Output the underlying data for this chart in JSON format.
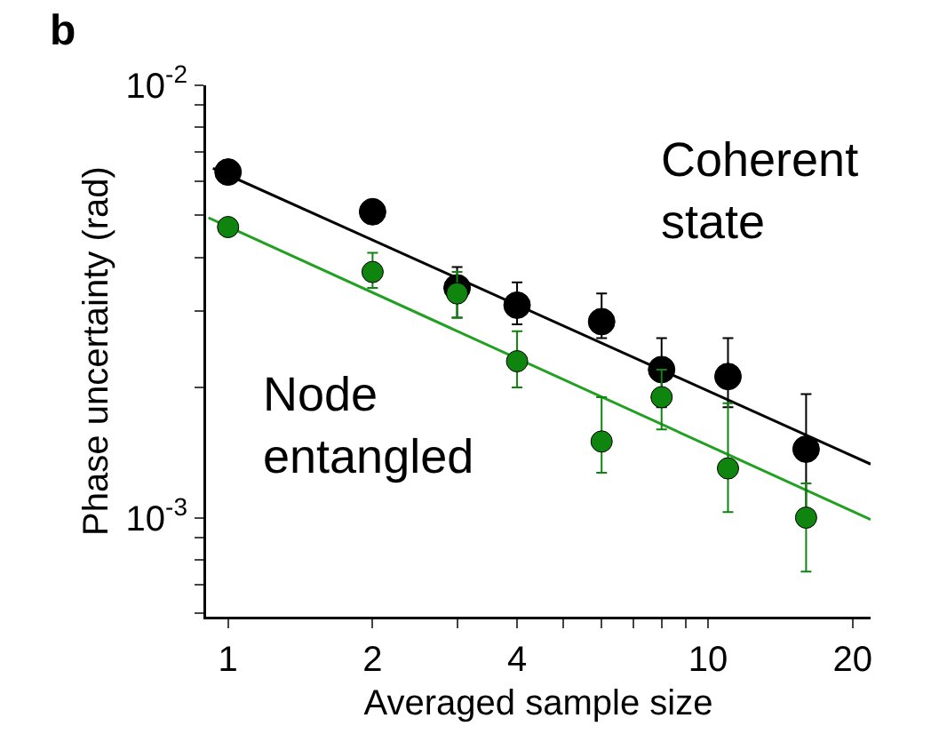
{
  "chart_data": {
    "type": "scatter",
    "xlabel": "Averaged sample size",
    "ylabel": "Phase uncertainty (rad)",
    "annotations": [
      "b"
    ],
    "log": "xy",
    "grid": false,
    "legend": false,
    "marker": "circle",
    "xlim": [
      0.9,
      21.8
    ],
    "ylim": [
      0.00059,
      0.01
    ],
    "xticks": [
      1,
      2,
      {
        "value": 3,
        "label": null
      },
      4,
      {
        "value": 5,
        "label": null
      },
      {
        "value": 6,
        "label": null
      },
      {
        "value": 7,
        "label": null
      },
      {
        "value": 8,
        "label": null
      },
      {
        "value": 9,
        "label": null
      },
      10,
      20
    ],
    "yticks": [
      {
        "value": 0.0006,
        "label": null
      },
      {
        "value": 0.0007,
        "label": null
      },
      {
        "value": 0.0008,
        "label": null
      },
      {
        "value": 0.0009,
        "label": null
      },
      {
        "value": 0.001,
        "label": "10$^{-3}$"
      },
      {
        "value": 0.002,
        "label": null
      },
      {
        "value": 0.003,
        "label": null
      },
      {
        "value": 0.004,
        "label": null
      },
      {
        "value": 0.005,
        "label": null
      },
      {
        "value": 0.006,
        "label": null
      },
      {
        "value": 0.007,
        "label": null
      },
      {
        "value": 0.008,
        "label": null
      },
      {
        "value": 0.009,
        "label": null
      },
      {
        "value": 0.01,
        "label": "10$^{-2}$"
      }
    ],
    "series": [
      {
        "type": "line",
        "marker": "none",
        "color": "#000000",
        "x": [
          0.93,
          21.8
        ],
        "values": [
          0.00643,
          0.00133
        ]
      },
      {
        "type": "line",
        "marker": "none",
        "color": "#22a022",
        "x": [
          0.91,
          21.8
        ],
        "values": [
          0.00494,
          0.00099
        ]
      },
      {
        "name": "Coherent state",
        "color": "#000000",
        "x": [
          1,
          2,
          3,
          4,
          6,
          8,
          11,
          16
        ],
        "values": [
          0.0063,
          0.0051,
          0.0034,
          0.0031,
          0.00284,
          0.0022,
          0.00212,
          0.00144
        ],
        "errors": [
          null,
          null,
          [
            0.0029,
            0.0038
          ],
          [
            0.0028,
            0.0035
          ],
          [
            0.0026,
            0.0033
          ],
          [
            0.0018,
            0.0026
          ],
          [
            0.0018,
            0.0026
          ],
          [
            0.00104,
            0.00193
          ]
        ]
      },
      {
        "name": "Node entangled",
        "color": "#0f850f",
        "x": [
          1,
          2,
          3,
          4,
          6,
          8,
          11,
          16
        ],
        "values": [
          0.0047,
          0.0037,
          0.0033,
          0.0023,
          0.0015,
          0.0019,
          0.0013,
          0.001
        ],
        "errors": [
          null,
          [
            0.0034,
            0.0041
          ],
          [
            0.0029,
            0.0037
          ],
          [
            0.002,
            0.0027
          ],
          [
            0.00127,
            0.0019
          ],
          [
            0.0016,
            0.0022
          ],
          [
            0.00103,
            0.00184
          ],
          [
            0.00075,
            0.0012
          ]
        ]
      }
    ]
  }
}
